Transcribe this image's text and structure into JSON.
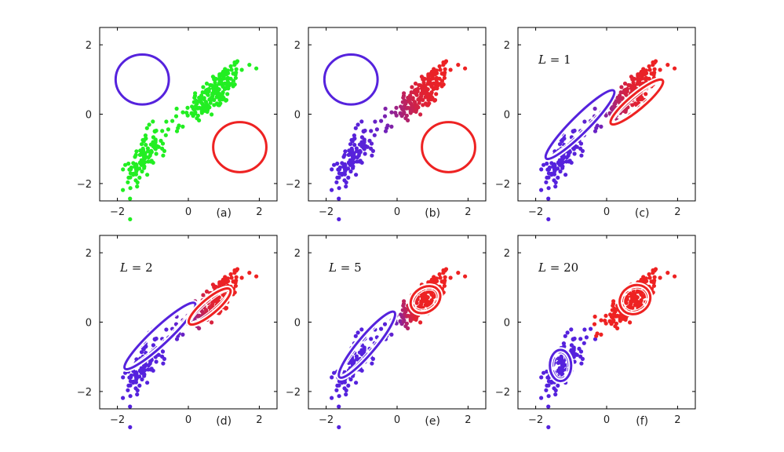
{
  "figure": {
    "background": "#ffffff"
  },
  "colors": {
    "green": "#22ee22",
    "blue": "#5522dd",
    "red": "#ee2222",
    "white": "#ffffff"
  },
  "chart_data": [
    {
      "type": "scatter",
      "tag": "(a)",
      "annotation": "",
      "xlim": [
        -2.5,
        2.5
      ],
      "ylim": [
        -2.5,
        2.5
      ],
      "xticks": [
        "−2",
        "0",
        "2"
      ],
      "yticks": [
        "−2",
        "0",
        "2"
      ],
      "xtick_values": [
        -2,
        0,
        2
      ],
      "ytick_values": [
        -2,
        0,
        2
      ],
      "point_coloring": "uniform green",
      "ellipses": [
        {
          "cx": -1.3,
          "cy": 1.0,
          "rx": 0.75,
          "ry": 0.72,
          "angle": 0,
          "color": "#5522dd",
          "inner": false
        },
        {
          "cx": 1.45,
          "cy": -0.95,
          "rx": 0.75,
          "ry": 0.72,
          "angle": 0,
          "color": "#ee2222",
          "inner": false
        }
      ]
    },
    {
      "type": "scatter",
      "tag": "(b)",
      "annotation": "",
      "xlim": [
        -2.5,
        2.5
      ],
      "ylim": [
        -2.5,
        2.5
      ],
      "xticks": [
        "−2",
        "0",
        "2"
      ],
      "yticks": [
        "−2",
        "0",
        "2"
      ],
      "xtick_values": [
        -2,
        0,
        2
      ],
      "ytick_values": [
        -2,
        0,
        2
      ],
      "point_coloring": "blue-to-red gradient (responsibilities)",
      "ellipses": [
        {
          "cx": -1.3,
          "cy": 1.0,
          "rx": 0.75,
          "ry": 0.72,
          "angle": 0,
          "color": "#5522dd",
          "inner": false
        },
        {
          "cx": 1.45,
          "cy": -0.95,
          "rx": 0.75,
          "ry": 0.72,
          "angle": 0,
          "color": "#ee2222",
          "inner": false
        }
      ]
    },
    {
      "type": "scatter",
      "tag": "(c)",
      "annotation_prefix": "L = ",
      "annotation_value": "1",
      "xlim": [
        -2.5,
        2.5
      ],
      "ylim": [
        -2.5,
        2.5
      ],
      "xticks": [
        "−2",
        "0",
        "2"
      ],
      "yticks": [
        "−2",
        "0",
        "2"
      ],
      "xtick_values": [
        -2,
        0,
        2
      ],
      "ytick_values": [
        -2,
        0,
        2
      ],
      "point_coloring": "blue-to-red gradient (responsibilities)",
      "ellipses": [
        {
          "cx": -0.75,
          "cy": -0.3,
          "rx": 1.35,
          "ry": 0.25,
          "angle": 45,
          "color": "#5522dd",
          "inner": true
        },
        {
          "cx": 0.85,
          "cy": 0.35,
          "rx": 0.95,
          "ry": 0.22,
          "angle": 40,
          "color": "#ee2222",
          "inner": true
        }
      ]
    },
    {
      "type": "scatter",
      "tag": "(d)",
      "annotation_prefix": "L = ",
      "annotation_value": "2",
      "xlim": [
        -2.5,
        2.5
      ],
      "ylim": [
        -2.5,
        2.5
      ],
      "xticks": [
        "−2",
        "0",
        "2"
      ],
      "yticks": [
        "−2",
        "0",
        "2"
      ],
      "xtick_values": [
        -2,
        0,
        2
      ],
      "ytick_values": [
        -2,
        0,
        2
      ],
      "point_coloring": "blue-to-red gradient (responsibilities)",
      "ellipses": [
        {
          "cx": -0.8,
          "cy": -0.4,
          "rx": 1.35,
          "ry": 0.25,
          "angle": 43,
          "color": "#5522dd",
          "inner": true
        },
        {
          "cx": 0.6,
          "cy": 0.45,
          "rx": 0.75,
          "ry": 0.22,
          "angle": 40,
          "color": "#ee2222",
          "inner": true
        }
      ]
    },
    {
      "type": "scatter",
      "tag": "(e)",
      "annotation_prefix": "L = ",
      "annotation_value": "5",
      "xlim": [
        -2.5,
        2.5
      ],
      "ylim": [
        -2.5,
        2.5
      ],
      "xticks": [
        "−2",
        "0",
        "2"
      ],
      "yticks": [
        "−2",
        "0",
        "2"
      ],
      "xtick_values": [
        -2,
        0,
        2
      ],
      "ytick_values": [
        -2,
        0,
        2
      ],
      "point_coloring": "blue-to-red gradient (responsibilities)",
      "ellipses": [
        {
          "cx": -0.85,
          "cy": -0.65,
          "rx": 1.2,
          "ry": 0.25,
          "angle": 50,
          "color": "#5522dd",
          "inner": true
        },
        {
          "cx": 0.8,
          "cy": 0.65,
          "rx": 0.45,
          "ry": 0.35,
          "angle": 35,
          "color": "#ee2222",
          "inner": true
        }
      ]
    },
    {
      "type": "scatter",
      "tag": "(f)",
      "annotation_prefix": "L = ",
      "annotation_value": "20",
      "xlim": [
        -2.5,
        2.5
      ],
      "ylim": [
        -2.5,
        2.5
      ],
      "xticks": [
        "−2",
        "0",
        "2"
      ],
      "yticks": [
        "−2",
        "0",
        "2"
      ],
      "xtick_values": [
        -2,
        0,
        2
      ],
      "ytick_values": [
        -2,
        0,
        2
      ],
      "point_coloring": "two clusters: blue lower-left, red upper-right",
      "ellipses": [
        {
          "cx": -1.3,
          "cy": -1.25,
          "rx": 0.3,
          "ry": 0.45,
          "angle": 0,
          "color": "#5522dd",
          "inner": true
        },
        {
          "cx": 0.8,
          "cy": 0.65,
          "rx": 0.45,
          "ry": 0.4,
          "angle": 35,
          "color": "#ee2222",
          "inner": true
        }
      ]
    }
  ]
}
